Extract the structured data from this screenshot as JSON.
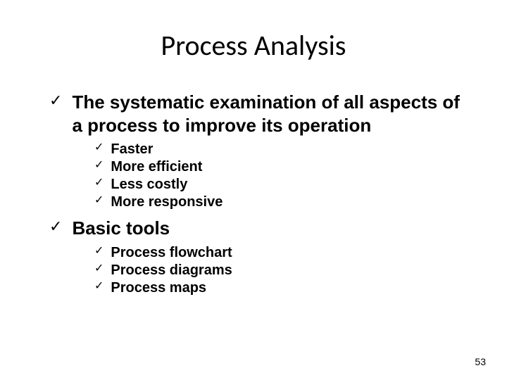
{
  "slide": {
    "title": "Process Analysis",
    "bullets": [
      {
        "text": "The systematic examination of all aspects of a process to improve its operation",
        "children": [
          {
            "text": "Faster"
          },
          {
            "text": "More efficient"
          },
          {
            "text": "Less costly"
          },
          {
            "text": "More responsive"
          }
        ]
      },
      {
        "text": "Basic tools",
        "children": [
          {
            "text": "Process flowchart"
          },
          {
            "text": "Process diagrams"
          },
          {
            "text": "Process maps"
          }
        ]
      }
    ],
    "page_number": "53"
  },
  "style": {
    "background_color": "#ffffff",
    "text_color": "#000000",
    "title_fontsize": 40,
    "title_font": "Calibri",
    "l1_fontsize": 26,
    "l1_fontweight": "bold",
    "l2_fontsize": 20,
    "l2_fontweight": "bold",
    "checkmark": "✓",
    "pagenum_fontsize": 14
  }
}
